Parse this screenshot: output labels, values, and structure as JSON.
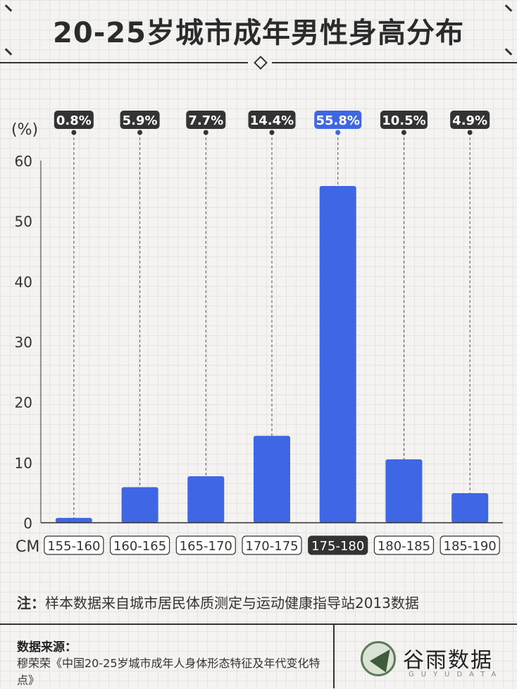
{
  "title": "20-25岁城市成年男性身高分布",
  "unit_label": "(%)",
  "x_unit_label": "CM",
  "note_prefix": "注：",
  "note_text": "样本数据来自城市居民体质测定与运动健康指导站2013数据",
  "source": {
    "title": "数据来源：",
    "text": "穆荣荣《中国20-25岁城市成年人身体形态特征及年代变化特点》"
  },
  "logo": {
    "name": "谷雨数据",
    "sub": "GUYUDATA",
    "icon": "bird-logo-icon"
  },
  "colors": {
    "bar": "#3f66e4",
    "highlight_label": "#3f66e4",
    "dark_label": "#333333"
  },
  "chart_data": {
    "type": "bar",
    "categories": [
      "155-160",
      "160-165",
      "165-170",
      "170-175",
      "175-180",
      "180-185",
      "185-190"
    ],
    "values": [
      0.8,
      5.9,
      7.7,
      14.4,
      55.8,
      10.5,
      4.9
    ],
    "value_labels": [
      "0.8%",
      "5.9%",
      "7.7%",
      "14.4%",
      "55.8%",
      "10.5%",
      "4.9%"
    ],
    "highlight_index": 4,
    "yticks": [
      0,
      10,
      20,
      30,
      40,
      50,
      60
    ],
    "ylim": [
      0,
      60
    ],
    "ylabel": "(%)",
    "xlabel": "CM",
    "grid": false
  }
}
